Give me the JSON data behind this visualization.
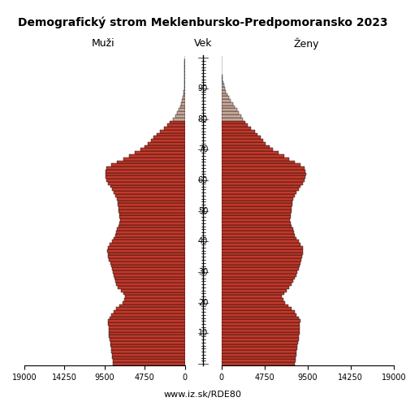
{
  "title": "Demografický strom Meklenbursko-Predpomoransko 2023",
  "subtitle_left": "Muži",
  "subtitle_center": "Vek",
  "subtitle_right": "Ženy",
  "footer": "www.iz.sk/RDE80",
  "xlim": 19000,
  "bar_color_young": "#c0392b",
  "bar_color_old": "#c9a89a",
  "bar_color_oldest": "#b0b0b0",
  "bar_edge_color": "#000000",
  "bar_linewidth": 0.3,
  "age_threshold_old": 80,
  "age_threshold_oldest": 90,
  "ages": [
    0,
    1,
    2,
    3,
    4,
    5,
    6,
    7,
    8,
    9,
    10,
    11,
    12,
    13,
    14,
    15,
    16,
    17,
    18,
    19,
    20,
    21,
    22,
    23,
    24,
    25,
    26,
    27,
    28,
    29,
    30,
    31,
    32,
    33,
    34,
    35,
    36,
    37,
    38,
    39,
    40,
    41,
    42,
    43,
    44,
    45,
    46,
    47,
    48,
    49,
    50,
    51,
    52,
    53,
    54,
    55,
    56,
    57,
    58,
    59,
    60,
    61,
    62,
    63,
    64,
    65,
    66,
    67,
    68,
    69,
    70,
    71,
    72,
    73,
    74,
    75,
    76,
    77,
    78,
    79,
    80,
    81,
    82,
    83,
    84,
    85,
    86,
    87,
    88,
    89,
    90,
    91,
    92,
    93,
    94,
    95,
    96,
    97,
    98,
    99,
    100
  ],
  "males": [
    8500,
    8550,
    8600,
    8650,
    8700,
    8750,
    8800,
    8850,
    8900,
    8950,
    9000,
    9020,
    9040,
    9060,
    9080,
    8900,
    8700,
    8450,
    8100,
    7750,
    7400,
    7200,
    7100,
    7300,
    7600,
    7900,
    8100,
    8200,
    8350,
    8450,
    8550,
    8650,
    8750,
    8850,
    8950,
    9050,
    9100,
    9150,
    9100,
    8900,
    8600,
    8400,
    8200,
    8100,
    8050,
    7800,
    7700,
    7650,
    7700,
    7750,
    7800,
    7850,
    7900,
    7950,
    8000,
    8200,
    8400,
    8600,
    8850,
    9100,
    9300,
    9350,
    9400,
    9350,
    9300,
    8700,
    8000,
    7300,
    6600,
    5900,
    5200,
    4800,
    4400,
    4000,
    3700,
    3300,
    2900,
    2500,
    2100,
    1750,
    1400,
    1150,
    900,
    720,
    570,
    440,
    330,
    245,
    175,
    120,
    82,
    54,
    35,
    22,
    13,
    8,
    5,
    3,
    1,
    1,
    0
  ],
  "females": [
    8100,
    8150,
    8200,
    8250,
    8300,
    8350,
    8400,
    8450,
    8500,
    8550,
    8600,
    8620,
    8640,
    8660,
    8680,
    8500,
    8300,
    8050,
    7700,
    7350,
    7000,
    6800,
    6700,
    6900,
    7200,
    7500,
    7700,
    7900,
    8100,
    8300,
    8400,
    8500,
    8600,
    8700,
    8800,
    8900,
    8950,
    9000,
    8950,
    8750,
    8500,
    8300,
    8100,
    8000,
    7950,
    7700,
    7600,
    7550,
    7600,
    7650,
    7700,
    7750,
    7800,
    7850,
    7900,
    8100,
    8300,
    8500,
    8750,
    9000,
    9200,
    9250,
    9300,
    9250,
    9200,
    8700,
    8100,
    7500,
    6900,
    6300,
    5700,
    5300,
    4900,
    4600,
    4300,
    4000,
    3700,
    3300,
    2900,
    2600,
    2400,
    2200,
    1950,
    1700,
    1480,
    1260,
    1040,
    840,
    670,
    520,
    390,
    285,
    205,
    145,
    100,
    66,
    42,
    26,
    15,
    8,
    4
  ],
  "left_xticks": [
    19000,
    14250,
    9500,
    4750,
    0
  ],
  "right_xticks": [
    0,
    4750,
    9500,
    14250,
    19000
  ],
  "yticks": [
    10,
    20,
    30,
    40,
    50,
    60,
    70,
    80,
    90
  ]
}
